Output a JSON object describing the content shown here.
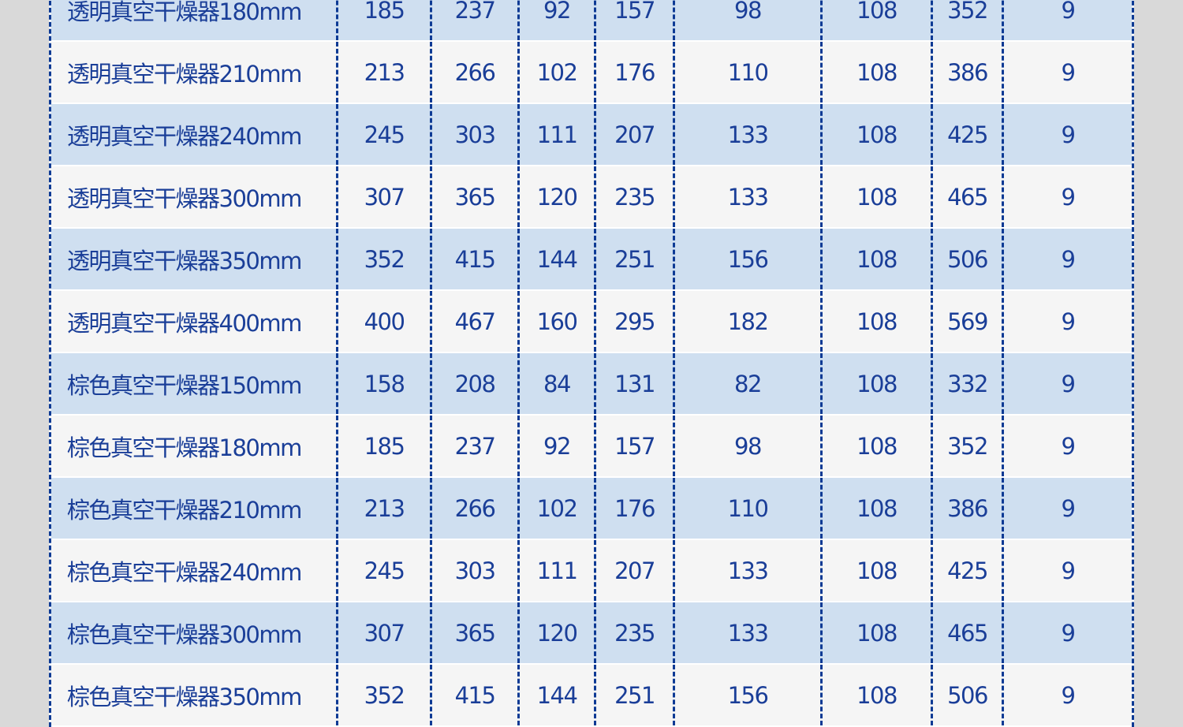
{
  "table": {
    "rows": [
      [
        "透明真空干燥器180mm",
        "185",
        "237",
        "92",
        "157",
        "98",
        "108",
        "352",
        "9"
      ],
      [
        "透明真空干燥器210mm",
        "213",
        "266",
        "102",
        "176",
        "110",
        "108",
        "386",
        "9"
      ],
      [
        "透明真空干燥器240mm",
        "245",
        "303",
        "111",
        "207",
        "133",
        "108",
        "425",
        "9"
      ],
      [
        "透明真空干燥器300mm",
        "307",
        "365",
        "120",
        "235",
        "133",
        "108",
        "465",
        "9"
      ],
      [
        "透明真空干燥器350mm",
        "352",
        "415",
        "144",
        "251",
        "156",
        "108",
        "506",
        "9"
      ],
      [
        "透明真空干燥器400mm",
        "400",
        "467",
        "160",
        "295",
        "182",
        "108",
        "569",
        "9"
      ],
      [
        "棕色真空干燥器150mm",
        "158",
        "208",
        "84",
        "131",
        "82",
        "108",
        "332",
        "9"
      ],
      [
        "棕色真空干燥器180mm",
        "185",
        "237",
        "92",
        "157",
        "98",
        "108",
        "352",
        "9"
      ],
      [
        "棕色真空干燥器210mm",
        "213",
        "266",
        "102",
        "176",
        "110",
        "108",
        "386",
        "9"
      ],
      [
        "棕色真空干燥器240mm",
        "245",
        "303",
        "111",
        "207",
        "133",
        "108",
        "425",
        "9"
      ],
      [
        "棕色真空干燥器300mm",
        "307",
        "365",
        "120",
        "235",
        "133",
        "108",
        "465",
        "9"
      ],
      [
        "棕色真空干燥器350mm",
        "352",
        "415",
        "144",
        "251",
        "156",
        "108",
        "506",
        "9"
      ]
    ]
  },
  "colors": {
    "text": "#1a3e98",
    "border": "#0d3a94",
    "row_alt": "#cfdff0",
    "row": "#f5f5f5",
    "background": "#d9d9d9"
  }
}
